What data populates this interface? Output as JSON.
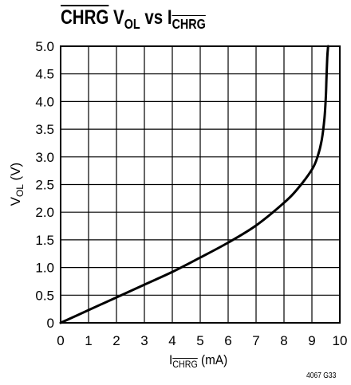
{
  "chart_data": {
    "type": "line",
    "title": {
      "a": "CHRG",
      "b": " V",
      "sub": "OL",
      "c": " vs I",
      "d": "CHRG"
    },
    "xlabel": {
      "main": "I",
      "sub": "CHRG",
      "unit": " (mA)"
    },
    "ylabel": {
      "main": "V",
      "sub": "OL",
      "unit": " (V)"
    },
    "xlim": [
      0,
      10
    ],
    "ylim": [
      0,
      5.0
    ],
    "x_ticks": [
      "0",
      "1",
      "2",
      "3",
      "4",
      "5",
      "6",
      "7",
      "8",
      "9",
      "10"
    ],
    "y_ticks": [
      "0",
      "0.5",
      "1.0",
      "1.5",
      "2.0",
      "2.5",
      "3.0",
      "3.5",
      "4.0",
      "4.5",
      "5.0"
    ],
    "grid": true,
    "series": [
      {
        "x": [
          0,
          1,
          2,
          3,
          4,
          5,
          6,
          7,
          8,
          8.5,
          9.0,
          9.2,
          9.35,
          9.45,
          9.5,
          9.52,
          9.55,
          9.58
        ],
        "y": [
          0,
          0.23,
          0.46,
          0.69,
          0.92,
          1.18,
          1.45,
          1.76,
          2.17,
          2.43,
          2.77,
          3.0,
          3.3,
          3.7,
          4.1,
          4.4,
          4.8,
          5.0
        ],
        "color": "#000000"
      }
    ],
    "figure_code": "4067 G33"
  }
}
